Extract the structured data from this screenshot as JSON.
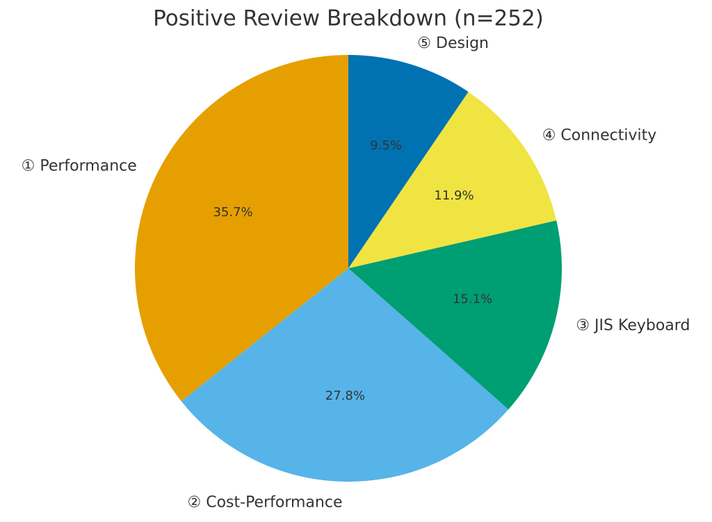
{
  "chart_data": {
    "type": "pie",
    "title": "Positive Review Breakdown (n=252)",
    "categories": [
      "① Performance",
      "② Cost-Performance",
      "③ JIS Keyboard",
      "④ Connectivity",
      "⑤ Design"
    ],
    "values": [
      35.7,
      27.8,
      15.1,
      11.9,
      9.5
    ],
    "value_labels": [
      "35.7%",
      "27.8%",
      "15.1%",
      "11.9%",
      "9.5%"
    ],
    "colors": [
      "#E69F00",
      "#56B4E9",
      "#009E73",
      "#F0E442",
      "#0072B2"
    ]
  }
}
